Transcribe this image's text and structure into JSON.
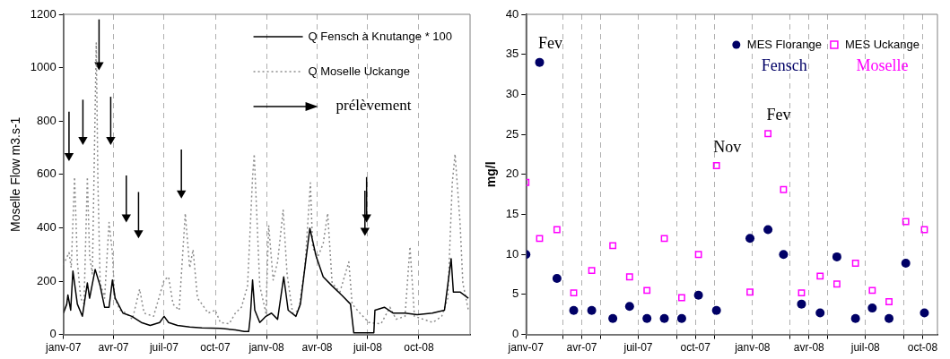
{
  "chart_data": [
    {
      "type": "line",
      "ylabel": "Moselle Flow m3.s-1",
      "xlim": [
        "2007-01-01",
        "2009-01-01"
      ],
      "xticks": [
        {
          "value": "2007-01-01",
          "label": "janv-07"
        },
        {
          "value": "2007-04-01",
          "label": "avr-07"
        },
        {
          "value": "2007-07-01",
          "label": "juil-07"
        },
        {
          "value": "2007-10-01",
          "label": "oct-07"
        },
        {
          "value": "2008-01-01",
          "label": "janv-08"
        },
        {
          "value": "2008-04-01",
          "label": "avr-08"
        },
        {
          "value": "2008-07-01",
          "label": "juil-08"
        },
        {
          "value": "2008-10-01",
          "label": "oct-08"
        }
      ],
      "ylim": [
        0,
        1200
      ],
      "yticks": [
        0,
        200,
        400,
        600,
        800,
        1000,
        1200
      ],
      "grid": "x",
      "legend": "top right",
      "series": [
        {
          "name": "Q Fensch à Knutange * 100",
          "color": "#000000",
          "line_style": "solid",
          "x": [
            "2007-01-01",
            "2007-01-07",
            "2007-01-09",
            "2007-01-14",
            "2007-01-18",
            "2007-01-26",
            "2007-02-04",
            "2007-02-13",
            "2007-02-17",
            "2007-02-27",
            "2007-03-08",
            "2007-03-16",
            "2007-03-24",
            "2007-03-30",
            "2007-04-04",
            "2007-04-18",
            "2007-05-04",
            "2007-05-21",
            "2007-06-06",
            "2007-06-23",
            "2007-07-01",
            "2007-07-09",
            "2007-07-25",
            "2007-08-16",
            "2007-09-07",
            "2007-10-10",
            "2007-11-06",
            "2007-11-22",
            "2007-11-30",
            "2007-12-03",
            "2007-12-07",
            "2007-12-11",
            "2007-12-20",
            "2007-12-31",
            "2008-01-10",
            "2008-01-21",
            "2008-02-01",
            "2008-02-09",
            "2008-02-23",
            "2008-03-02",
            "2008-03-10",
            "2008-03-19",
            "2008-03-30",
            "2008-04-12",
            "2008-04-28",
            "2008-05-15",
            "2008-05-31",
            "2008-06-06",
            "2008-07-12",
            "2008-07-14",
            "2008-07-31",
            "2008-08-16",
            "2008-09-06",
            "2008-09-28",
            "2008-10-25",
            "2008-11-16",
            "2008-11-28",
            "2008-12-02",
            "2008-12-14",
            "2008-12-29"
          ],
          "values": [
            80,
            114,
            148,
            91,
            238,
            114,
            68,
            193,
            136,
            244,
            182,
            102,
            102,
            204,
            136,
            80,
            68,
            45,
            34,
            45,
            68,
            45,
            34,
            28,
            25,
            23,
            17,
            11,
            11,
            68,
            204,
            91,
            45,
            68,
            80,
            57,
            216,
            91,
            68,
            114,
            250,
            398,
            295,
            216,
            182,
            148,
            114,
            6,
            6,
            91,
            102,
            80,
            80,
            74,
            80,
            91,
            284,
            159,
            159,
            136
          ]
        },
        {
          "name": "Q Moselle Uckange",
          "color": "#8c8c8c",
          "line_style": "dotted",
          "x": [
            "2007-01-01",
            "2007-01-11",
            "2007-01-15",
            "2007-01-21",
            "2007-01-26",
            "2007-02-01",
            "2007-02-07",
            "2007-02-13",
            "2007-02-17",
            "2007-02-22",
            "2007-03-01",
            "2007-03-04",
            "2007-03-08",
            "2007-03-16",
            "2007-03-24",
            "2007-03-30",
            "2007-04-03",
            "2007-04-13",
            "2007-04-24",
            "2007-05-05",
            "2007-05-18",
            "2007-05-26",
            "2007-06-12",
            "2007-07-01",
            "2007-07-09",
            "2007-07-17",
            "2007-07-28",
            "2007-08-08",
            "2007-08-16",
            "2007-08-22",
            "2007-08-30",
            "2007-09-07",
            "2007-09-18",
            "2007-10-01",
            "2007-10-10",
            "2007-10-26",
            "2007-11-06",
            "2007-11-17",
            "2007-11-28",
            "2007-12-07",
            "2007-12-10",
            "2007-12-14",
            "2007-12-20",
            "2007-12-31",
            "2008-01-05",
            "2008-01-13",
            "2008-01-21",
            "2008-01-31",
            "2008-02-07",
            "2008-02-17",
            "2008-02-28",
            "2008-03-10",
            "2008-03-20",
            "2008-03-24",
            "2008-04-01",
            "2008-04-12",
            "2008-04-20",
            "2008-04-28",
            "2008-05-12",
            "2008-05-28",
            "2008-06-03",
            "2008-06-17",
            "2008-07-03",
            "2008-07-25",
            "2008-08-10",
            "2008-08-21",
            "2008-09-06",
            "2008-09-15",
            "2008-09-23",
            "2008-10-09",
            "2008-10-26",
            "2008-11-11",
            "2008-11-22",
            "2008-11-30",
            "2008-12-05",
            "2008-12-14",
            "2008-12-19",
            "2008-12-29"
          ],
          "values": [
            261,
            307,
            250,
            590,
            272,
            136,
            114,
            590,
            295,
            227,
            1093,
            568,
            193,
            136,
            420,
            307,
            136,
            91,
            80,
            57,
            170,
            80,
            68,
            204,
            216,
            114,
            91,
            454,
            250,
            318,
            136,
            114,
            80,
            91,
            45,
            40,
            80,
            102,
            182,
            590,
            676,
            477,
            182,
            80,
            409,
            204,
            272,
            466,
            227,
            80,
            91,
            250,
            568,
            329,
            284,
            341,
            454,
            193,
            159,
            272,
            114,
            80,
            45,
            40,
            102,
            57,
            68,
            329,
            68,
            57,
            45,
            68,
            136,
            568,
            676,
            420,
            193,
            91
          ]
        },
        {
          "name": "prélèvement",
          "type": "scatter",
          "color": "#000000",
          "marker": "triangle",
          "x": [
            "2007-01-11",
            "2007-02-05",
            "2007-03-06",
            "2007-03-27",
            "2007-04-24",
            "2007-05-16",
            "2007-08-01",
            "2008-06-26",
            "2008-06-29"
          ],
          "values": [
            670,
            730,
            1010,
            730,
            440,
            380,
            530,
            390,
            440
          ],
          "errors": [
            [
              670,
              835
            ],
            [
              730,
              880
            ],
            [
              1010,
              1181
            ],
            [
              730,
              891
            ],
            [
              440,
              596
            ],
            [
              380,
              534
            ],
            [
              530,
              693
            ],
            [
              390,
              539
            ],
            [
              440,
              590
            ]
          ]
        }
      ]
    },
    {
      "type": "scatter",
      "ylabel": "mg/l",
      "xlim": [
        "2007-01-01",
        "2008-10-25"
      ],
      "xticks": [
        {
          "value": "2007-01-01",
          "label": "janv-07"
        },
        {
          "value": "2007-03-01",
          "label": null
        },
        {
          "value": "2007-04-01",
          "label": "avr-07"
        },
        {
          "value": "2007-05-01",
          "label": null
        },
        {
          "value": "2007-07-01",
          "label": "juil-07"
        },
        {
          "value": "2007-09-01",
          "label": null
        },
        {
          "value": "2007-10-01",
          "label": "oct-07"
        },
        {
          "value": "2007-11-01",
          "label": null
        },
        {
          "value": "2008-01-01",
          "label": "janv-08"
        },
        {
          "value": "2008-03-01",
          "label": null
        },
        {
          "value": "2008-04-01",
          "label": "avr-08"
        },
        {
          "value": "2008-05-01",
          "label": null
        },
        {
          "value": "2008-07-01",
          "label": "juil-08"
        },
        {
          "value": "2008-09-01",
          "label": null
        },
        {
          "value": "2008-10-01",
          "label": "oct-08"
        }
      ],
      "ylim": [
        0,
        40
      ],
      "yticks": [
        0,
        5,
        10,
        15,
        20,
        25,
        30,
        35,
        40
      ],
      "grid": "x",
      "legend": "top right",
      "annotations": [
        "Fensch",
        "Moselle",
        {
          "text": "Fev",
          "x": "2007-01-23",
          "y": 34
        },
        {
          "text": "Nov",
          "x": "2007-11-04",
          "y": 21.1
        },
        {
          "text": "Fev",
          "x": "2008-01-26",
          "y": 25.1
        }
      ],
      "x": [
        "2007-01-01",
        "2007-01-23",
        "2007-02-20",
        "2007-03-19",
        "2007-04-17",
        "2007-05-21",
        "2007-06-17",
        "2007-07-15",
        "2007-08-12",
        "2007-09-09",
        "2007-10-06",
        "2007-11-04",
        "2007-12-28",
        "2008-01-26",
        "2008-02-20",
        "2008-03-20",
        "2008-04-19",
        "2008-05-16",
        "2008-06-15",
        "2008-07-12",
        "2008-08-08",
        "2008-09-04",
        "2008-10-04"
      ],
      "series": [
        {
          "name": "MES Florange",
          "color": "#000066",
          "marker": "circle",
          "values": [
            10,
            34,
            7,
            3,
            3,
            2,
            3.5,
            2,
            2,
            2,
            4.9,
            3,
            12,
            13.1,
            10,
            3.8,
            2.7,
            9.7,
            2,
            3.3,
            2,
            8.9,
            2.7
          ]
        },
        {
          "name": "MES Uckange",
          "color": "#ff00ff",
          "marker": "square",
          "values": [
            19,
            12,
            13.1,
            5.2,
            8,
            11.1,
            7.2,
            5.5,
            12,
            4.6,
            10,
            21.1,
            5.3,
            25.1,
            18.1,
            5.2,
            7.3,
            6.3,
            8.9,
            5.5,
            4.1,
            14.1,
            13.1
          ]
        }
      ]
    }
  ]
}
